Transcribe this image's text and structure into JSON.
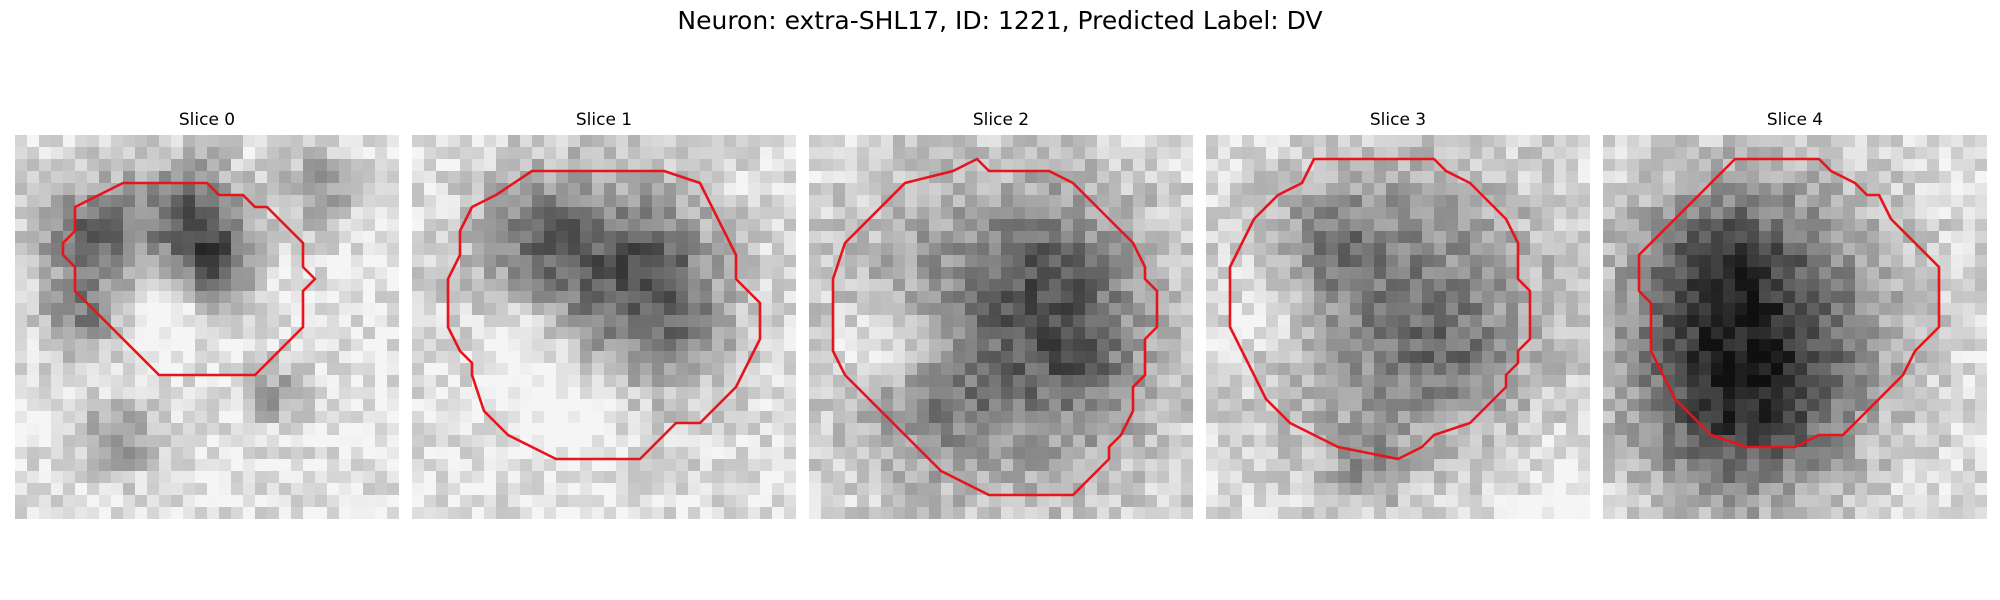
{
  "figure": {
    "title": "Neuron: extra-SHL17, ID: 1221, Predicted Label: DV"
  },
  "panels": [
    {
      "title": "Slice 0"
    },
    {
      "title": "Slice 1"
    },
    {
      "title": "Slice 2"
    },
    {
      "title": "Slice 3"
    },
    {
      "title": "Slice 4"
    }
  ],
  "colors": {
    "contour": "#e8141c"
  }
}
